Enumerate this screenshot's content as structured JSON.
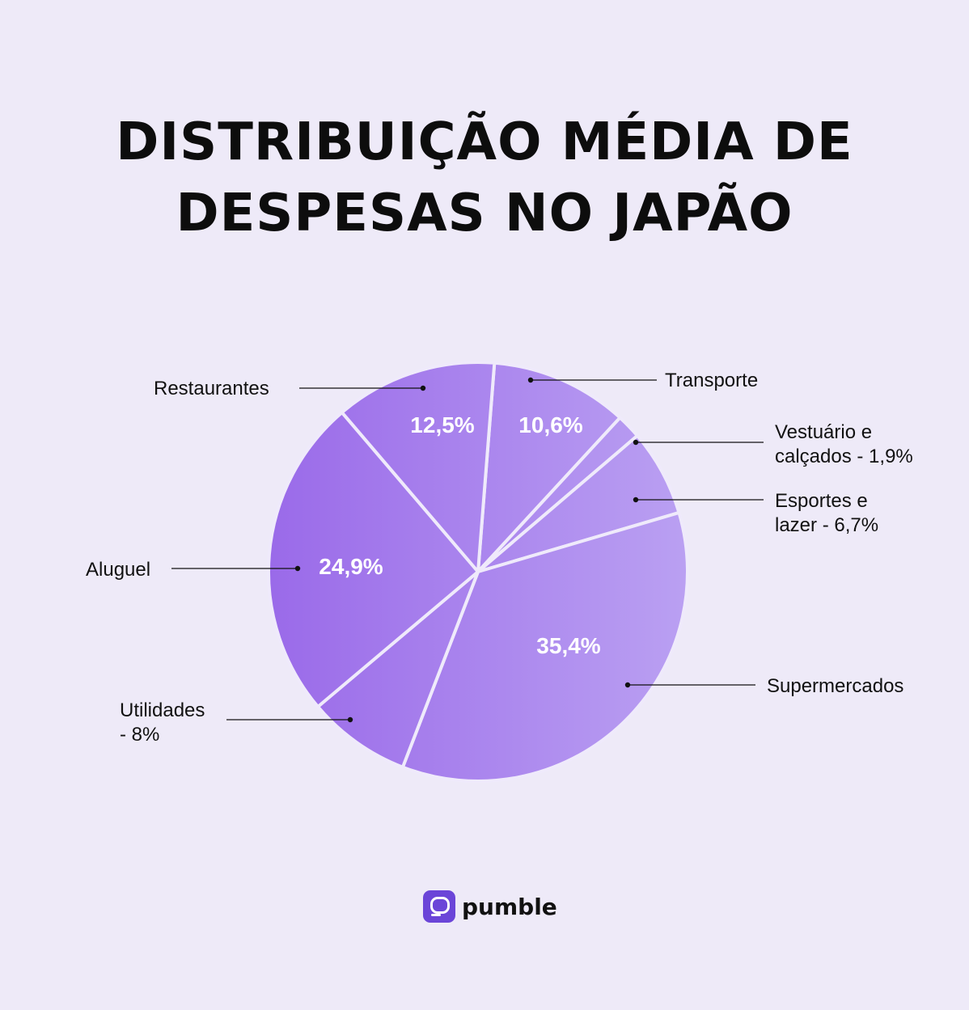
{
  "title_line1": "DISTRIBUIÇÃO MÉDIA DE",
  "title_line2": "DESPESAS NO JAPÃO",
  "brand": "pumble",
  "colors": {
    "background": "#eeeaf8",
    "slice_dark": "#9a6ae9",
    "slice_light": "#baa0f2",
    "brand": "#6b45d8"
  },
  "chart_data": {
    "type": "pie",
    "title": "DISTRIBUIÇÃO MÉDIA DE DESPESAS NO JAPÃO",
    "slices": [
      {
        "label": [
          "Transporte"
        ],
        "value": 10.6,
        "inner_label": "10,6%"
      },
      {
        "label": [
          "Vestuário e",
          "calçados - 1,9%"
        ],
        "value": 1.9,
        "inner_label": ""
      },
      {
        "label": [
          "Esportes e",
          "lazer - 6,7%"
        ],
        "value": 6.7,
        "inner_label": ""
      },
      {
        "label": [
          "Supermercados"
        ],
        "value": 35.4,
        "inner_label": "35,4%"
      },
      {
        "label": [
          "Utilidades",
          "- 8%"
        ],
        "value": 8.0,
        "inner_label": ""
      },
      {
        "label": [
          "Aluguel"
        ],
        "value": 24.9,
        "inner_label": "24,9%"
      },
      {
        "label": [
          "Restaurantes"
        ],
        "value": 12.5,
        "inner_label": "12,5%"
      }
    ]
  }
}
